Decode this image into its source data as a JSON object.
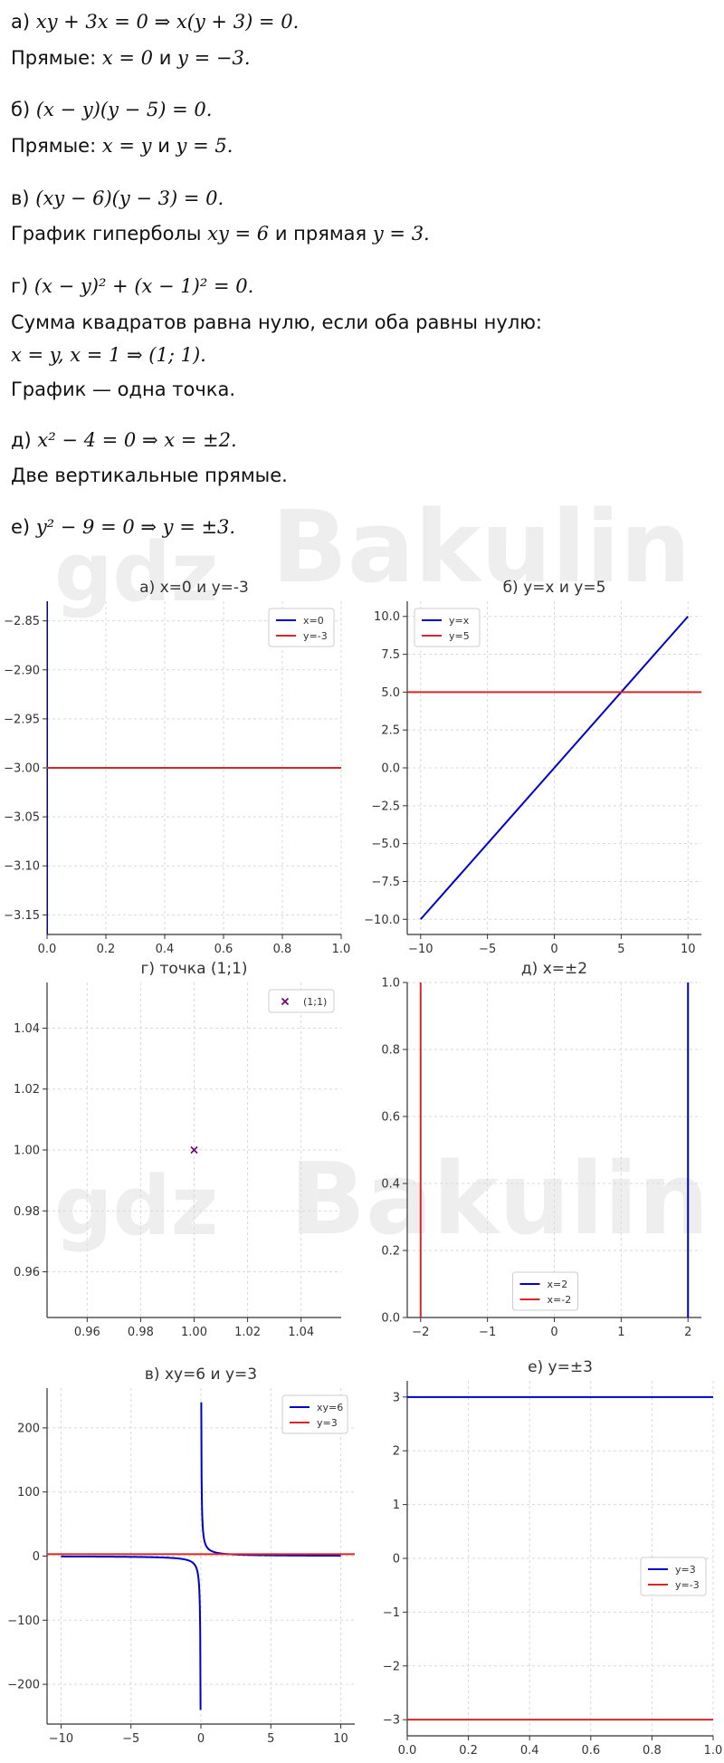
{
  "text_lines": [
    {
      "label": "а)",
      "math": "xy + 3x = 0   ⇒   x(y + 3) = 0."
    },
    {
      "label": "Прямые:",
      "math": "x = 0",
      "mid": "и",
      "math2": "y = −3."
    },
    {
      "label": "б)",
      "math": "(x − y)(y − 5) = 0."
    },
    {
      "label": "Прямые:",
      "math": "x = y",
      "mid": "и",
      "math2": "y = 5."
    },
    {
      "label": "в)",
      "math": "(xy − 6)(y − 3) = 0."
    },
    {
      "label": "График гиперболы",
      "math": "xy = 6",
      "mid": "и прямая",
      "math2": "y = 3."
    },
    {
      "label": "г)",
      "math": "(x − y)² + (x − 1)² = 0."
    },
    {
      "label": "Сумма квадратов равна нулю, если оба равны нулю:"
    },
    {
      "label": "",
      "math": "x = y,  x = 1  ⇒  (1; 1)."
    },
    {
      "label": "График — одна точка."
    },
    {
      "label": "д)",
      "math": "x² − 4 = 0  ⇒  x = ±2."
    },
    {
      "label": "Две вертикальные прямые."
    },
    {
      "label": "е)",
      "math": "y² − 9 = 0  ⇒  y = ±3."
    }
  ],
  "watermark": {
    "brand": "Bakulin",
    "brand2": "gdz"
  },
  "colors": {
    "blue": "#0000cc",
    "red": "#d62728",
    "purple": "#6a006a",
    "grid": "#d9d9d9",
    "axis": "#333333"
  },
  "chart_data": [
    {
      "id": "a",
      "type": "line",
      "title": "а) x=0 и y=-3",
      "xlim": [
        0,
        1
      ],
      "ylim": [
        -3.17,
        -2.83
      ],
      "xticks": [
        0.0,
        0.2,
        0.4,
        0.6,
        0.8,
        1.0
      ],
      "xtick_labels": [
        "0.0",
        "0.2",
        "0.4",
        "0.6",
        "0.8",
        "1.0"
      ],
      "yticks": [
        -2.85,
        -2.9,
        -2.95,
        -3.0,
        -3.05,
        -3.1,
        -3.15
      ],
      "ytick_labels": [
        "−2.85",
        "−2.90",
        "−2.95",
        "−3.00",
        "−3.05",
        "−3.10",
        "−3.15"
      ],
      "legend_position": "top-right",
      "series": [
        {
          "name": "x=0",
          "color": "blue",
          "kind": "vline",
          "x": 0
        },
        {
          "name": "y=-3",
          "color": "red",
          "kind": "hline",
          "y": -3
        }
      ]
    },
    {
      "id": "b",
      "type": "line",
      "title": "б) y=x и y=5",
      "xlim": [
        -11,
        11
      ],
      "ylim": [
        -11,
        11
      ],
      "xticks": [
        -10,
        -5,
        0,
        5,
        10
      ],
      "xtick_labels": [
        "−10",
        "−5",
        "0",
        "5",
        "10"
      ],
      "yticks": [
        10,
        7.5,
        5,
        2.5,
        0,
        -2.5,
        -5,
        -7.5,
        -10
      ],
      "ytick_labels": [
        "10.0",
        "7.5",
        "5.0",
        "2.5",
        "0.0",
        "−2.5",
        "−5.0",
        "−7.5",
        "−10.0"
      ],
      "legend_position": "top-left",
      "series": [
        {
          "name": "y=x",
          "color": "blue",
          "kind": "line",
          "points": [
            [
              -10,
              -10
            ],
            [
              10,
              10
            ]
          ]
        },
        {
          "name": "y=5",
          "color": "red",
          "kind": "hline",
          "y": 5
        }
      ]
    },
    {
      "id": "g",
      "type": "scatter",
      "title": "г) точка (1;1)",
      "xlim": [
        0.945,
        1.055
      ],
      "ylim": [
        0.945,
        1.055
      ],
      "xticks": [
        0.96,
        0.98,
        1.0,
        1.02,
        1.04
      ],
      "xtick_labels": [
        "0.96",
        "0.98",
        "1.00",
        "1.02",
        "1.04"
      ],
      "yticks": [
        1.04,
        1.02,
        1.0,
        0.98,
        0.96
      ],
      "ytick_labels": [
        "1.04",
        "1.02",
        "1.00",
        "0.98",
        "0.96"
      ],
      "legend_position": "top-right",
      "series": [
        {
          "name": "(1;1)",
          "color": "purple",
          "kind": "point",
          "x": 1,
          "y": 1
        }
      ]
    },
    {
      "id": "d",
      "type": "line",
      "title": "д) x=±2",
      "xlim": [
        -2.2,
        2.2
      ],
      "ylim": [
        0,
        1
      ],
      "xticks": [
        -2,
        -1,
        0,
        1,
        2
      ],
      "xtick_labels": [
        "−2",
        "−1",
        "0",
        "1",
        "2"
      ],
      "yticks": [
        1.0,
        0.8,
        0.6,
        0.4,
        0.2,
        0.0
      ],
      "ytick_labels": [
        "1.0",
        "0.8",
        "0.6",
        "0.4",
        "0.2",
        "0.0"
      ],
      "legend_position": "bottom-center",
      "series": [
        {
          "name": "x=2",
          "color": "blue",
          "kind": "vline",
          "x": 2
        },
        {
          "name": "x=-2",
          "color": "red",
          "kind": "vline",
          "x": -2
        }
      ]
    },
    {
      "id": "v",
      "type": "line",
      "title": "в) xy=6 и y=3",
      "xlim": [
        -11,
        11
      ],
      "ylim": [
        -262,
        262
      ],
      "xticks": [
        -10,
        -5,
        0,
        5,
        10
      ],
      "xtick_labels": [
        "−10",
        "−5",
        "0",
        "5",
        "10"
      ],
      "yticks": [
        200,
        100,
        0,
        -100,
        -200
      ],
      "ytick_labels": [
        "200",
        "100",
        "0",
        "−100",
        "−200"
      ],
      "legend_position": "top-right",
      "series": [
        {
          "name": "xy=6",
          "color": "blue",
          "kind": "hyperbola",
          "k": 6,
          "x_range": [
            -10,
            10
          ],
          "y_clip": 240
        },
        {
          "name": "y=3",
          "color": "red",
          "kind": "hline",
          "y": 3
        }
      ]
    },
    {
      "id": "e",
      "type": "line",
      "title": "е) y=±3",
      "xlim": [
        0,
        1
      ],
      "ylim": [
        -3.3,
        3.3
      ],
      "xticks": [
        0.0,
        0.2,
        0.4,
        0.6,
        0.8,
        1.0
      ],
      "xtick_labels": [
        "0.0",
        "0.2",
        "0.4",
        "0.6",
        "0.8",
        "1.0"
      ],
      "yticks": [
        3,
        2,
        1,
        0,
        -1,
        -2,
        -3
      ],
      "ytick_labels": [
        "3",
        "2",
        "1",
        "0",
        "−1",
        "−2",
        "−3"
      ],
      "legend_position": "center-right",
      "series": [
        {
          "name": "y=3",
          "color": "blue",
          "kind": "hline",
          "y": 3
        },
        {
          "name": "y=-3",
          "color": "red",
          "kind": "hline",
          "y": -3
        }
      ]
    }
  ]
}
